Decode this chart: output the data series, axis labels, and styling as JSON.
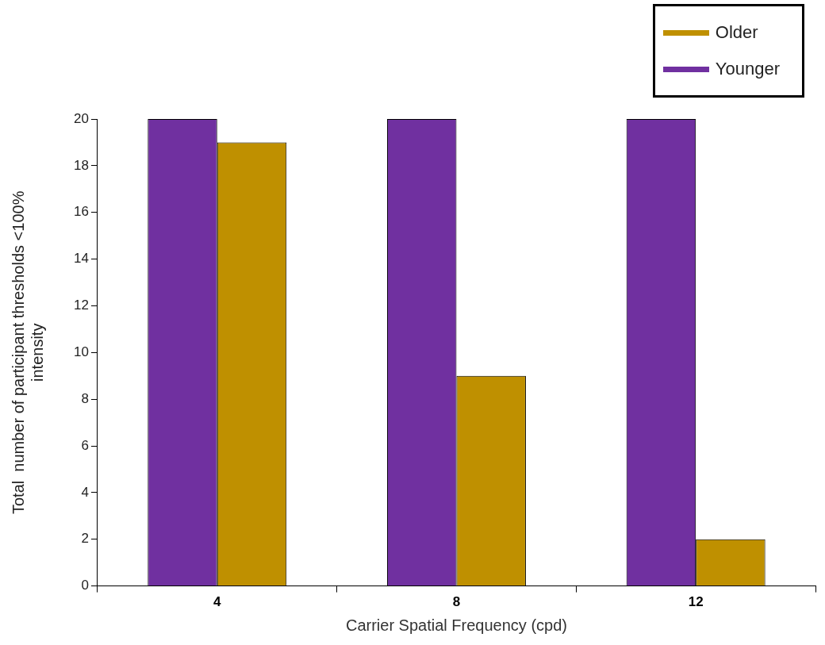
{
  "chart_data": {
    "type": "bar",
    "xlabel": "Carrier Spatial Frequency (cpd)",
    "ylabel": "Total  number of participant thresholds <100%\nintensity",
    "categories": [
      "4",
      "8",
      "12"
    ],
    "series": [
      {
        "name": "Younger",
        "color": "#7030a0",
        "values": [
          20,
          20,
          20
        ]
      },
      {
        "name": "Older",
        "color": "#bf9000",
        "values": [
          19,
          9,
          2
        ]
      }
    ],
    "ylim": [
      0,
      20
    ],
    "yticks": [
      0,
      2,
      4,
      6,
      8,
      10,
      12,
      14,
      16,
      18,
      20
    ],
    "legend": "top right"
  }
}
